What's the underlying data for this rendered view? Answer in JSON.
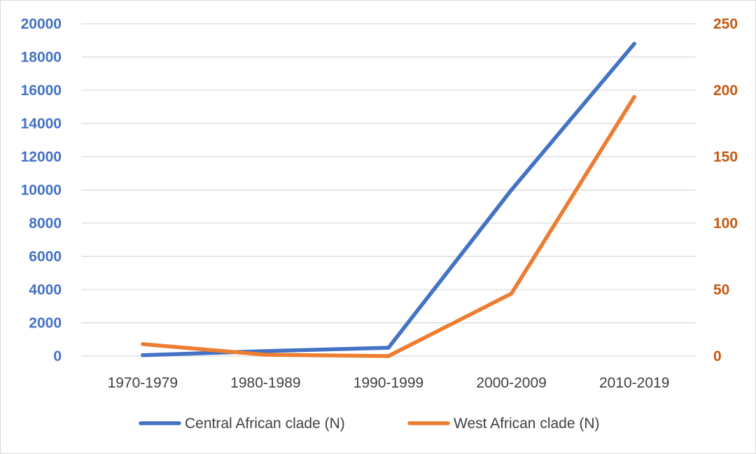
{
  "chart_data": {
    "type": "line",
    "title": "",
    "xlabel": "",
    "ylabel": "",
    "y2label": "",
    "categories": [
      "1970-1979",
      "1980-1989",
      "1990-1999",
      "2000-2009",
      "2010-2019"
    ],
    "series": [
      {
        "name": "Central African clade (N)",
        "axis": "left",
        "color": "#4472c4",
        "values": [
          50,
          300,
          500,
          10000,
          18800
        ]
      },
      {
        "name": "West African clade (N)",
        "axis": "right",
        "color": "#ed7d31",
        "values": [
          9,
          1,
          0,
          47,
          195
        ]
      }
    ],
    "y_axis_left": {
      "ylim": [
        0,
        20000
      ],
      "ticks": [
        "0",
        "2000",
        "4000",
        "6000",
        "8000",
        "10000",
        "12000",
        "14000",
        "16000",
        "18000",
        "20000"
      ],
      "color": "#4472c4"
    },
    "y_axis_right": {
      "ylim": [
        0,
        250
      ],
      "ticks": [
        "0",
        "50",
        "100",
        "150",
        "200",
        "250"
      ],
      "color": "#c55a11"
    },
    "grid": true,
    "legend_position": "bottom",
    "grid_color": "#d9d9d9"
  }
}
